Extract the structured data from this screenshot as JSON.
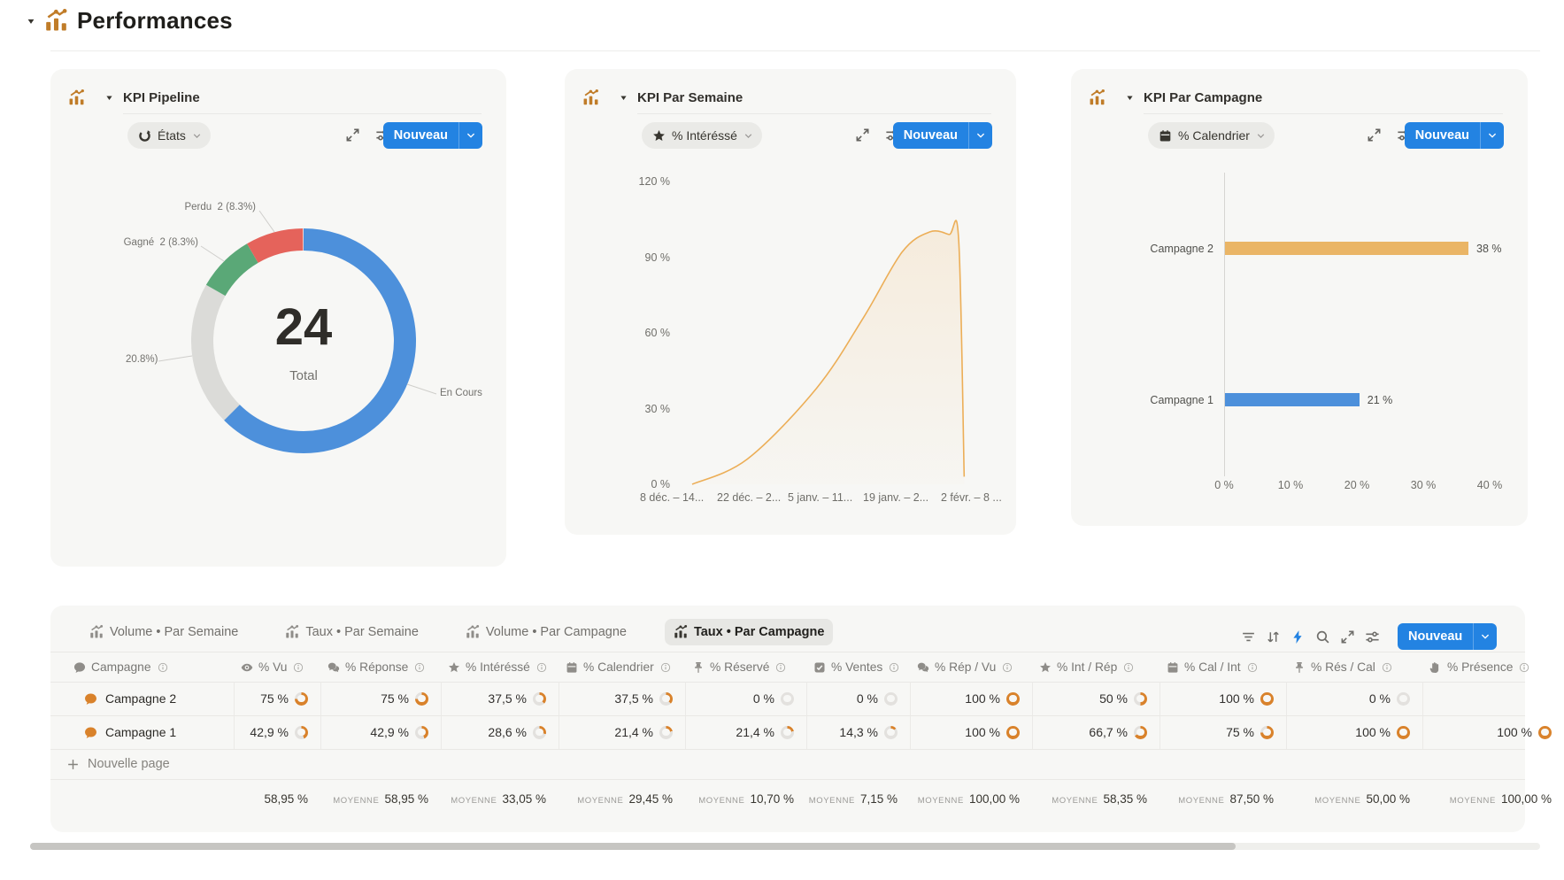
{
  "page": {
    "title": "Performances",
    "title_icon": "chart-icon"
  },
  "cards": {
    "pipeline": {
      "title": "KPI Pipeline",
      "filter": {
        "icon": "status-icon",
        "label": "États"
      },
      "new_label": "Nouveau",
      "chart_data": {
        "type": "pie",
        "total_value": "24",
        "total_label": "Total",
        "segments": [
          {
            "label": "En Cours",
            "value": 62.5,
            "color": "#4D90DB"
          },
          {
            "label": "20.8%)",
            "value": 20.8,
            "color": "#DBDBD8"
          },
          {
            "label": "Gagné 2 (8.3%)",
            "value": 8.3,
            "color": "#5AA877"
          },
          {
            "label": "Perdu 2 (8.3%)",
            "value": 8.3,
            "color": "#E5635B"
          }
        ],
        "visible_labels": {
          "perdu": "Perdu  2 (8.3%)",
          "gagne": "Gagné  2 (8.3%)",
          "gray": "20.8%)",
          "encours": "En Cours"
        }
      }
    },
    "semaine": {
      "title": "KPI Par Semaine",
      "filter": {
        "icon": "star-icon",
        "label": "% Intéréssé"
      },
      "new_label": "Nouveau",
      "chart_data": {
        "type": "area",
        "ylabel": "",
        "y_ticks": [
          "120 %",
          "90 %",
          "60 %",
          "30 %",
          "0 %"
        ],
        "y_max": 120,
        "x_labels": [
          "8 déc. – 14...",
          "22 déc. – 2...",
          "5 janv. – 11...",
          "19 janv. – 2...",
          "2 févr. – 8 ..."
        ],
        "points": [
          [
            0,
            0
          ],
          [
            0.2,
            10
          ],
          [
            0.45,
            38
          ],
          [
            0.62,
            66
          ],
          [
            0.76,
            92
          ],
          [
            0.86,
            100
          ],
          [
            0.93,
            99
          ],
          [
            0.965,
            97
          ],
          [
            0.985,
            3
          ]
        ],
        "line_color": "#ECAE57",
        "fill_color_top": "rgba(236,174,87,0.16)",
        "fill_color_bottom": "rgba(236,174,87,0.02)"
      }
    },
    "campagne": {
      "title": "KPI Par Campagne",
      "filter": {
        "icon": "calendar-icon",
        "label": "% Calendrier"
      },
      "new_label": "Nouveau",
      "chart_data": {
        "type": "bar",
        "orientation": "horizontal",
        "categories": [
          "Campagne 2",
          "Campagne 1"
        ],
        "values": [
          38,
          21
        ],
        "value_labels": [
          "38 %",
          "21 %"
        ],
        "colors": [
          "#EAB566",
          "#4D90DB"
        ],
        "x_ticks": [
          "0 %",
          "10 %",
          "20 %",
          "30 %",
          "40 %"
        ],
        "xlim": [
          0,
          40
        ]
      }
    }
  },
  "table": {
    "tabs": [
      {
        "icon": "chart-icon",
        "label": "Volume • Par Semaine",
        "active": false
      },
      {
        "icon": "chart-icon",
        "label": "Taux • Par Semaine",
        "active": false
      },
      {
        "icon": "chart-icon",
        "label": "Volume • Par Campagne",
        "active": false
      },
      {
        "icon": "chart-icon",
        "label": "Taux • Par Campagne",
        "active": true
      }
    ],
    "toolbar": {
      "icons": [
        "filter-icon",
        "sort-icon",
        "lightning-icon",
        "search-icon",
        "expand-icon",
        "sliders-icon"
      ],
      "new_label": "Nouveau"
    },
    "columns": [
      {
        "icon": "bubble-icon",
        "label": "Campagne"
      },
      {
        "icon": "eye-icon",
        "label": "% Vu"
      },
      {
        "icon": "bubbles-icon",
        "label": "% Réponse"
      },
      {
        "icon": "star-icon",
        "label": "% Intéréssé"
      },
      {
        "icon": "calendar-icon",
        "label": "% Calendrier"
      },
      {
        "icon": "pin-icon",
        "label": "% Réservé"
      },
      {
        "icon": "checkbox-icon",
        "label": "% Ventes"
      },
      {
        "icon": "bubbles-icon",
        "label": "% Rép / Vu"
      },
      {
        "icon": "star-icon",
        "label": "% Int / Rép"
      },
      {
        "icon": "calendar-icon",
        "label": "% Cal / Int"
      },
      {
        "icon": "pin-icon",
        "label": "% Rés / Cal"
      },
      {
        "icon": "hand-icon",
        "label": "% Présence"
      }
    ],
    "rows": [
      {
        "icon": "bubble-icon",
        "name": "Campagne 2",
        "cells": [
          {
            "text": "75 %",
            "pct": 75
          },
          {
            "text": "75 %",
            "pct": 75
          },
          {
            "text": "37,5 %",
            "pct": 37.5
          },
          {
            "text": "37,5 %",
            "pct": 37.5
          },
          {
            "text": "0 %",
            "pct": 0
          },
          {
            "text": "0 %",
            "pct": 0
          },
          {
            "text": "100 %",
            "pct": 100
          },
          {
            "text": "50 %",
            "pct": 50
          },
          {
            "text": "100 %",
            "pct": 100
          },
          {
            "text": "0 %",
            "pct": 0
          },
          null
        ]
      },
      {
        "icon": "bubble-icon",
        "name": "Campagne 1",
        "cells": [
          {
            "text": "42,9 %",
            "pct": 42.9
          },
          {
            "text": "42,9 %",
            "pct": 42.9
          },
          {
            "text": "28,6 %",
            "pct": 28.6
          },
          {
            "text": "21,4 %",
            "pct": 21.4
          },
          {
            "text": "21,4 %",
            "pct": 21.4
          },
          {
            "text": "14,3 %",
            "pct": 14.3
          },
          {
            "text": "100 %",
            "pct": 100
          },
          {
            "text": "66,7 %",
            "pct": 66.7
          },
          {
            "text": "75 %",
            "pct": 75
          },
          {
            "text": "100 %",
            "pct": 100
          },
          {
            "text": "100 %",
            "pct": 100
          }
        ]
      }
    ],
    "new_page_label": "Nouvelle page",
    "footer": [
      {
        "prefix": "",
        "value": "58,95 %"
      },
      {
        "prefix": "MOYENNE",
        "value": "58,95 %"
      },
      {
        "prefix": "MOYENNE",
        "value": "33,05 %"
      },
      {
        "prefix": "MOYENNE",
        "value": "29,45 %"
      },
      {
        "prefix": "MOYENNE",
        "value": "10,70 %"
      },
      {
        "prefix": "MOYENNE",
        "value": "7,15 %"
      },
      {
        "prefix": "MOYENNE",
        "value": "100,00 %"
      },
      {
        "prefix": "MOYENNE",
        "value": "58,35 %"
      },
      {
        "prefix": "MOYENNE",
        "value": "87,50 %"
      },
      {
        "prefix": "MOYENNE",
        "value": "50,00 %"
      },
      {
        "prefix": "MOYENNE",
        "value": "100,00 %"
      }
    ]
  },
  "colors": {
    "accent_blue": "#2383e2",
    "card_bg": "#f7f7f5",
    "ring_orange": "#d9822b",
    "ring_gray": "#e3e1de",
    "icon_orange": "#c07c28"
  }
}
